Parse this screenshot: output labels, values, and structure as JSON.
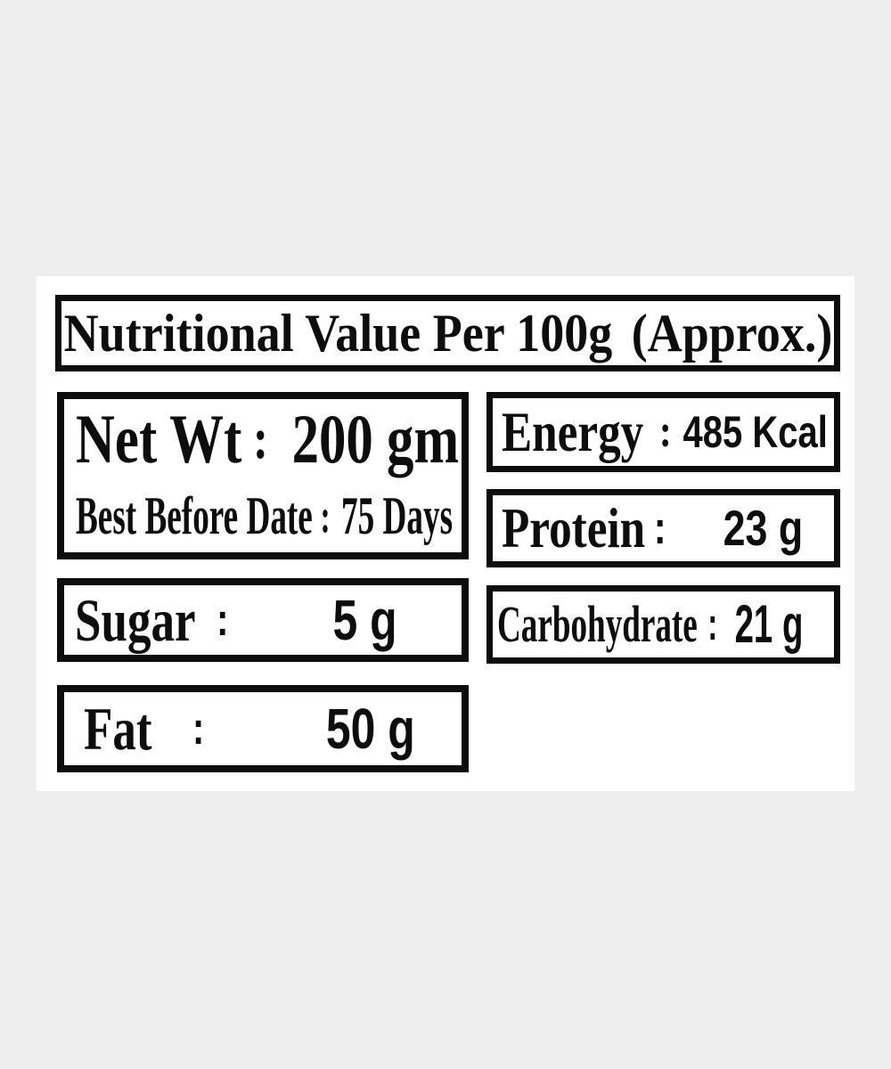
{
  "colors": {
    "background": "#eeeeee",
    "panel": "#ffffff",
    "ink": "#0d0d0d"
  },
  "title_box": {
    "main": "Nutritional Value Per 100g",
    "suffix": "(Approx.)"
  },
  "net_wt_box": {
    "line1": {
      "label": "Net Wt",
      "separator": ":",
      "value": "200 gm"
    },
    "line2": {
      "label": "Best Before Date",
      "separator": ":",
      "value": "75 Days"
    }
  },
  "sugar_box": {
    "label": "Sugar",
    "separator": ":",
    "value": "5 g"
  },
  "fat_box": {
    "label": "Fat",
    "separator": ":",
    "value": "50 g"
  },
  "energy_box": {
    "label": "Energy",
    "separator": ":",
    "value": "485 Kcal"
  },
  "protein_box": {
    "label": "Protein",
    "separator": ":",
    "value": "23 g"
  },
  "carbohydrate_box": {
    "label": "Carbohydrate",
    "separator": ":",
    "value": "21 g"
  }
}
